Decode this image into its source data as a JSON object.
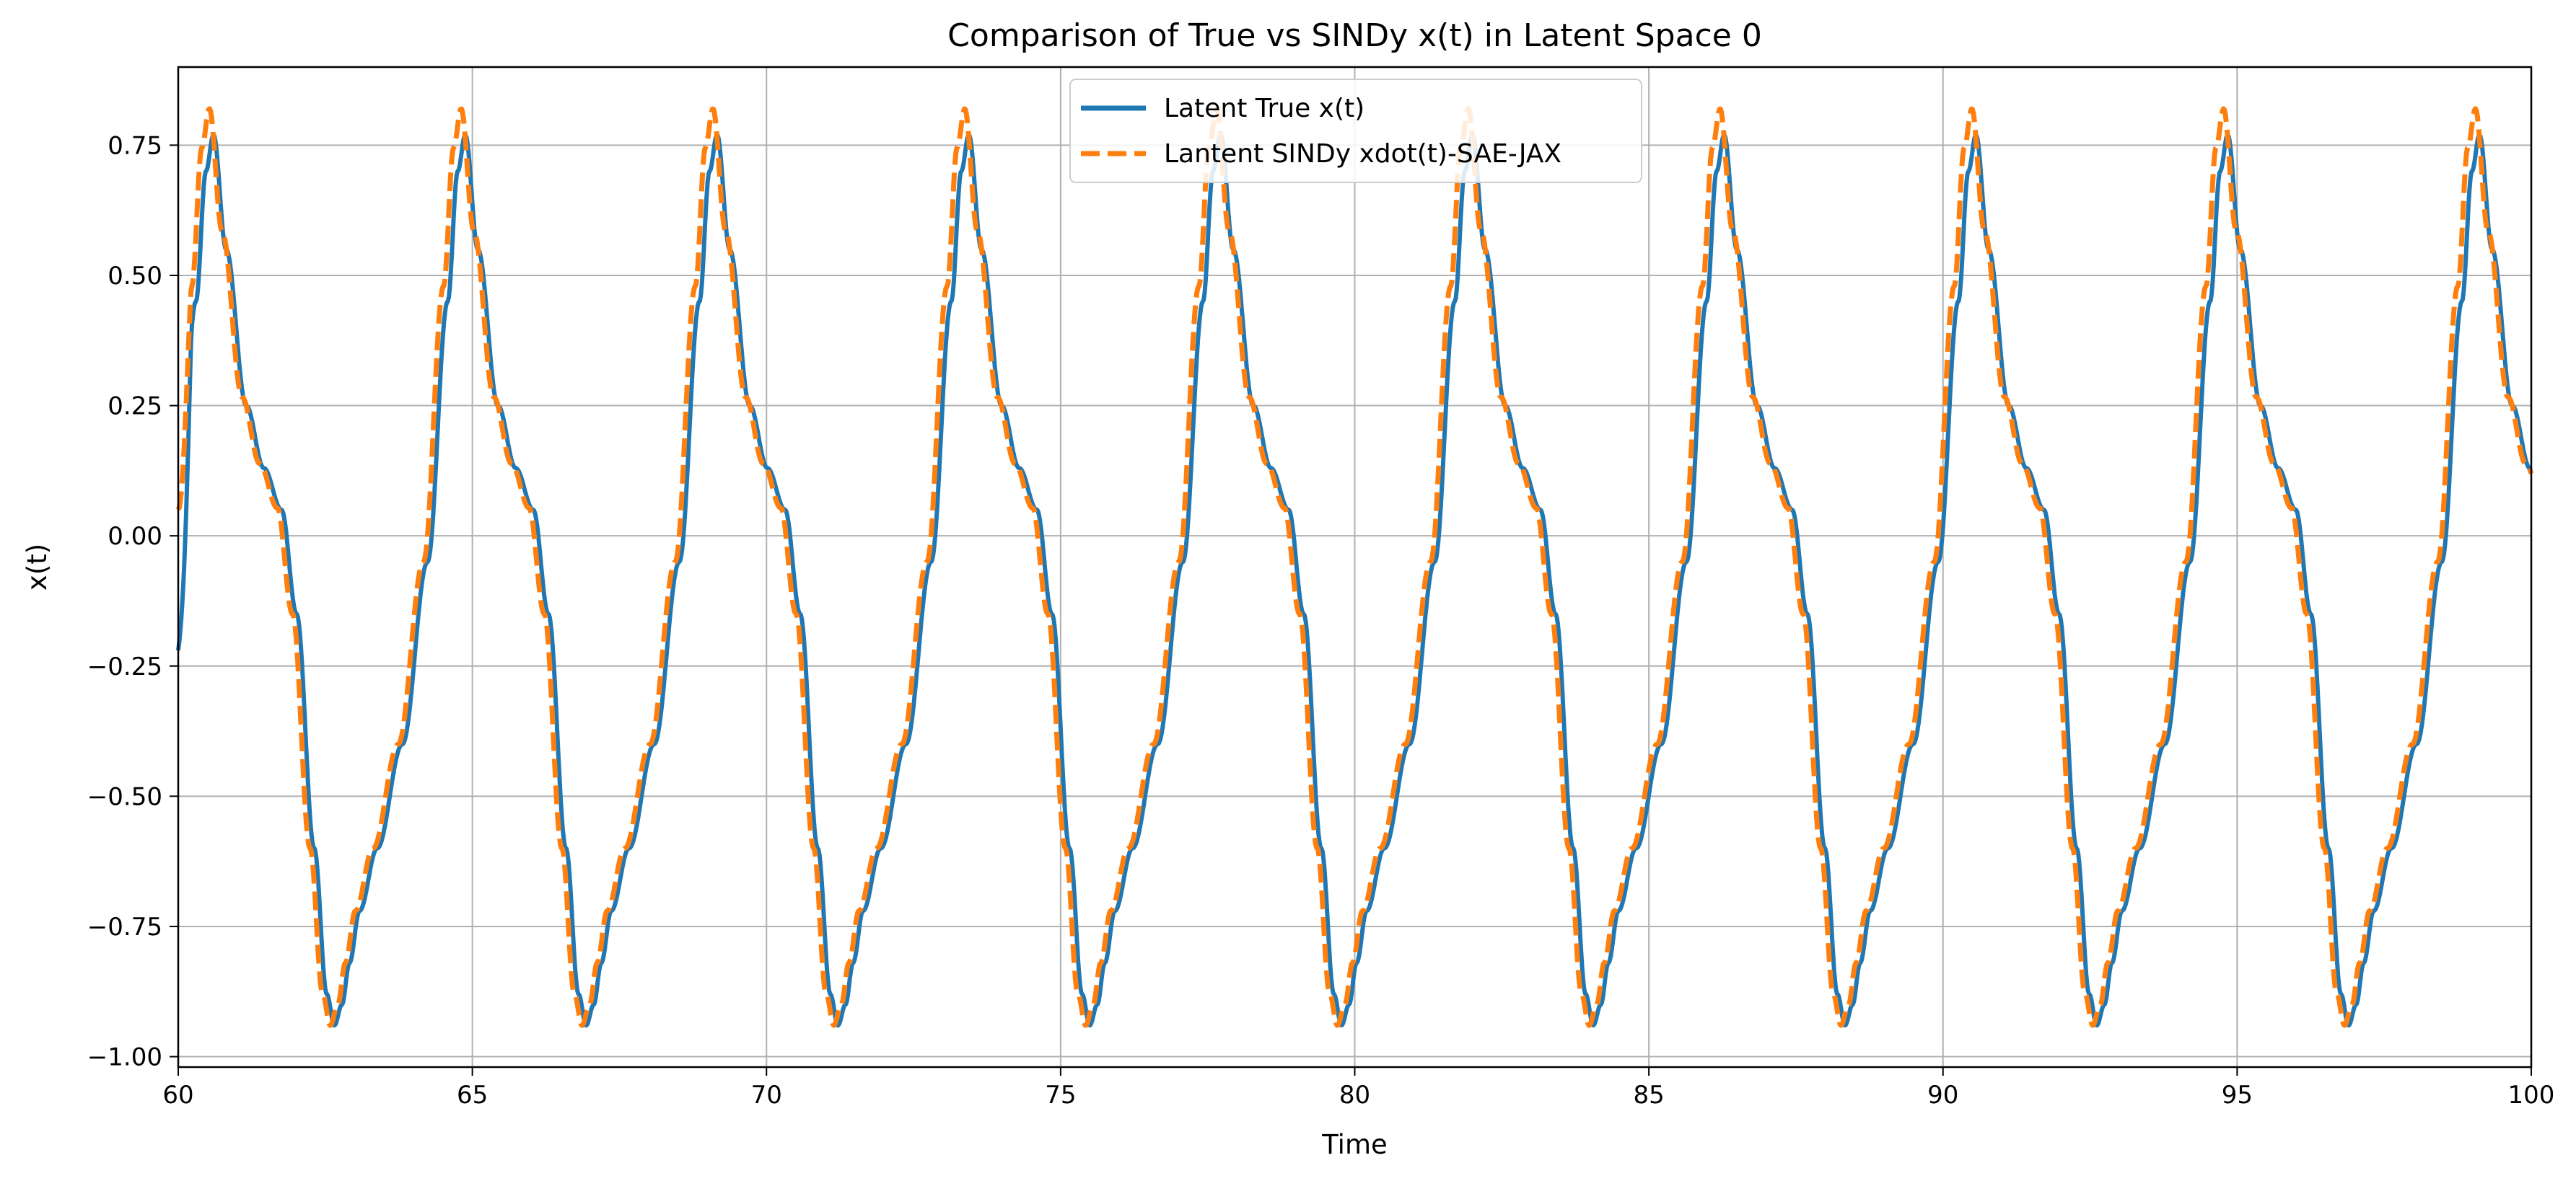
{
  "chart_data": {
    "type": "line",
    "title": "Comparison of True vs SINDy x(t) in Latent Space 0",
    "xlabel": "Time",
    "ylabel": "x(t)",
    "xlim": [
      60,
      100
    ],
    "ylim": [
      -1.02,
      0.9
    ],
    "x_ticks": [
      60,
      65,
      70,
      75,
      80,
      85,
      90,
      95,
      100
    ],
    "x_tick_labels": [
      "60",
      "65",
      "70",
      "75",
      "80",
      "85",
      "90",
      "95",
      "100"
    ],
    "y_ticks": [
      0.75,
      0.5,
      0.25,
      0.0,
      -0.25,
      -0.5,
      -0.75,
      -1.0
    ],
    "y_tick_labels": [
      "0.75",
      "0.50",
      "0.25",
      "0.00",
      "−0.25",
      "−0.50",
      "−0.75",
      "−1.00"
    ],
    "grid": true,
    "legend_position": "top-center",
    "series": [
      {
        "name": "Latent True x(t)",
        "color": "#1f77b4",
        "style": "solid",
        "period": 4.28,
        "max_times": [
          60.6,
          64.88,
          69.16,
          73.44,
          77.72,
          82.0,
          86.28,
          90.56,
          94.84,
          99.12
        ],
        "min_times": [
          62.65,
          66.93,
          71.21,
          75.49,
          79.77,
          84.05,
          88.33,
          92.61,
          96.89
        ],
        "peak_value": 0.77,
        "trough_value": -0.94,
        "start_value": -0.22,
        "end_value": 0.27,
        "waveform_phase": [
          0,
          0.05,
          0.13,
          0.2,
          0.27,
          0.33,
          0.4,
          0.45,
          0.48,
          0.51,
          0.54,
          0.58,
          0.65,
          0.75,
          0.85,
          0.93,
          0.97,
          1.0
        ],
        "waveform_value": [
          0.77,
          0.55,
          0.25,
          0.13,
          0.05,
          -0.15,
          -0.6,
          -0.88,
          -0.94,
          -0.9,
          -0.82,
          -0.72,
          -0.6,
          -0.4,
          -0.05,
          0.45,
          0.7,
          0.77
        ]
      },
      {
        "name": "Lantent SINDy xdot(t)-SAE-JAX",
        "color": "#ff7f0e",
        "style": "dashed",
        "period": 4.28,
        "phase_shift": -0.07,
        "max_times": [
          60.53,
          64.81,
          69.09,
          73.37,
          77.65,
          81.93,
          86.21,
          90.49,
          94.77,
          99.05
        ],
        "min_times": [
          62.58,
          66.86,
          71.14,
          75.42,
          79.7,
          83.98,
          88.26,
          92.54,
          96.82
        ],
        "peak_value": 0.82,
        "trough_value": -0.94,
        "start_value": 0.05,
        "end_value": 0.24
      }
    ]
  }
}
